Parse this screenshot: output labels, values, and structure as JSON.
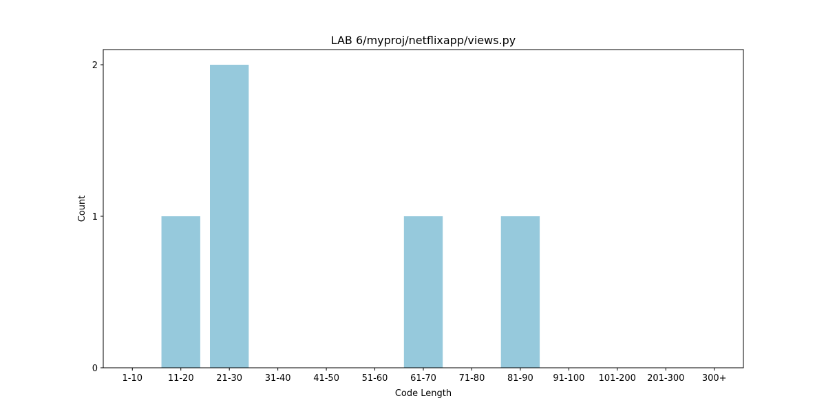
{
  "chart_data": {
    "type": "bar",
    "title": "LAB 6/myproj/netflixapp/views.py",
    "xlabel": "Code Length",
    "ylabel": "Count",
    "categories": [
      "1-10",
      "11-20",
      "21-30",
      "31-40",
      "41-50",
      "51-60",
      "61-70",
      "71-80",
      "81-90",
      "91-100",
      "101-200",
      "201-300",
      "300+"
    ],
    "values": [
      0,
      1,
      2,
      0,
      0,
      0,
      1,
      0,
      1,
      0,
      0,
      0,
      0
    ],
    "ylim": [
      0,
      2.1
    ],
    "yticks": [
      "0",
      "1",
      "2"
    ],
    "bar_color": "#96c9dc",
    "grid": false,
    "legend": "none"
  }
}
